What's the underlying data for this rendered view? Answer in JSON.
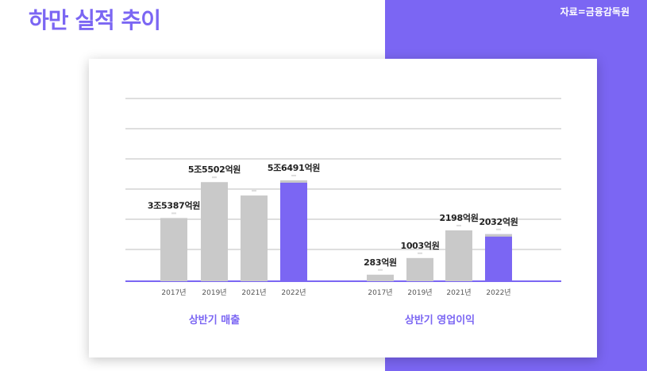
{
  "header": {
    "title": "하만 실적 추이",
    "source": "자료=금융감독원"
  },
  "colors": {
    "accent": "#7b66f3",
    "bar_default": "#c9c9c9",
    "grid": "#bdbdbd"
  },
  "chart_data": [
    {
      "type": "bar",
      "title": "상반기 매출",
      "categories": [
        "2017년",
        "2019년",
        "2021년",
        "2022년"
      ],
      "values": [
        35387,
        55502,
        48000,
        56491
      ],
      "value_labels": [
        "3조5387억원",
        "5조5502억원",
        "",
        "5조6491억원"
      ],
      "highlight_index": 3,
      "unit": "억원"
    },
    {
      "type": "bar",
      "title": "상반기 영업이익",
      "categories": [
        "2017년",
        "2019년",
        "2021년",
        "2022년"
      ],
      "values": [
        283,
        1003,
        2198,
        2032
      ],
      "value_labels": [
        "283억원",
        "1003억원",
        "2198억원",
        "2032억원"
      ],
      "highlight_index": 3,
      "unit": "억원"
    }
  ]
}
